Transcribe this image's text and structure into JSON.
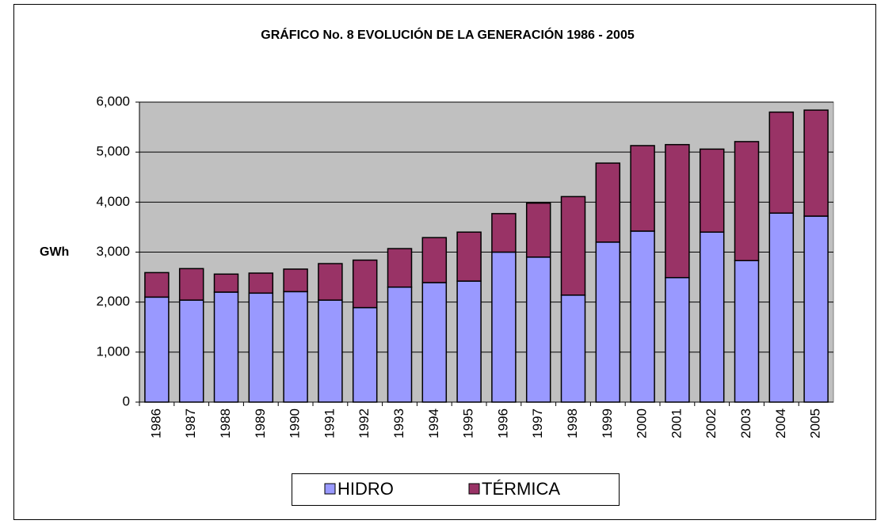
{
  "chart_data": {
    "type": "bar",
    "stacked": true,
    "title": "GRÁFICO No. 8    EVOLUCIÓN DE LA GENERACIÓN   1986 - 2005",
    "y_label": "GWh",
    "categories": [
      "1986",
      "1987",
      "1988",
      "1989",
      "1990",
      "1991",
      "1992",
      "1993",
      "1994",
      "1995",
      "1996",
      "1997",
      "1998",
      "1999",
      "2000",
      "2001",
      "2002",
      "2003",
      "2004",
      "2005"
    ],
    "series": [
      {
        "name": "HIDRO",
        "color": "#9999ff",
        "values": [
          2100,
          2040,
          2200,
          2180,
          2210,
          2040,
          1890,
          2300,
          2390,
          2420,
          3000,
          2900,
          2140,
          3200,
          3420,
          2490,
          3400,
          2830,
          3780,
          3720
        ]
      },
      {
        "name": "TÉRMICA",
        "color": "#993366",
        "values": [
          490,
          630,
          360,
          400,
          450,
          730,
          950,
          770,
          900,
          980,
          770,
          1080,
          1970,
          1580,
          1710,
          2660,
          1660,
          2380,
          2020,
          2120
        ]
      }
    ],
    "ylim": [
      0,
      6000
    ],
    "yticks": [
      0,
      {
        "value": 1000,
        "label": "1,000"
      },
      {
        "value": 2000,
        "label": "2,000"
      },
      {
        "value": 3000,
        "label": "3,000"
      },
      {
        "value": 4000,
        "label": "4,000"
      },
      {
        "value": 5000,
        "label": "5,000"
      },
      {
        "value": 6000,
        "label": "6,000"
      }
    ],
    "grid": true,
    "legend": "bottom",
    "plot_background": "#c0c0c0"
  }
}
